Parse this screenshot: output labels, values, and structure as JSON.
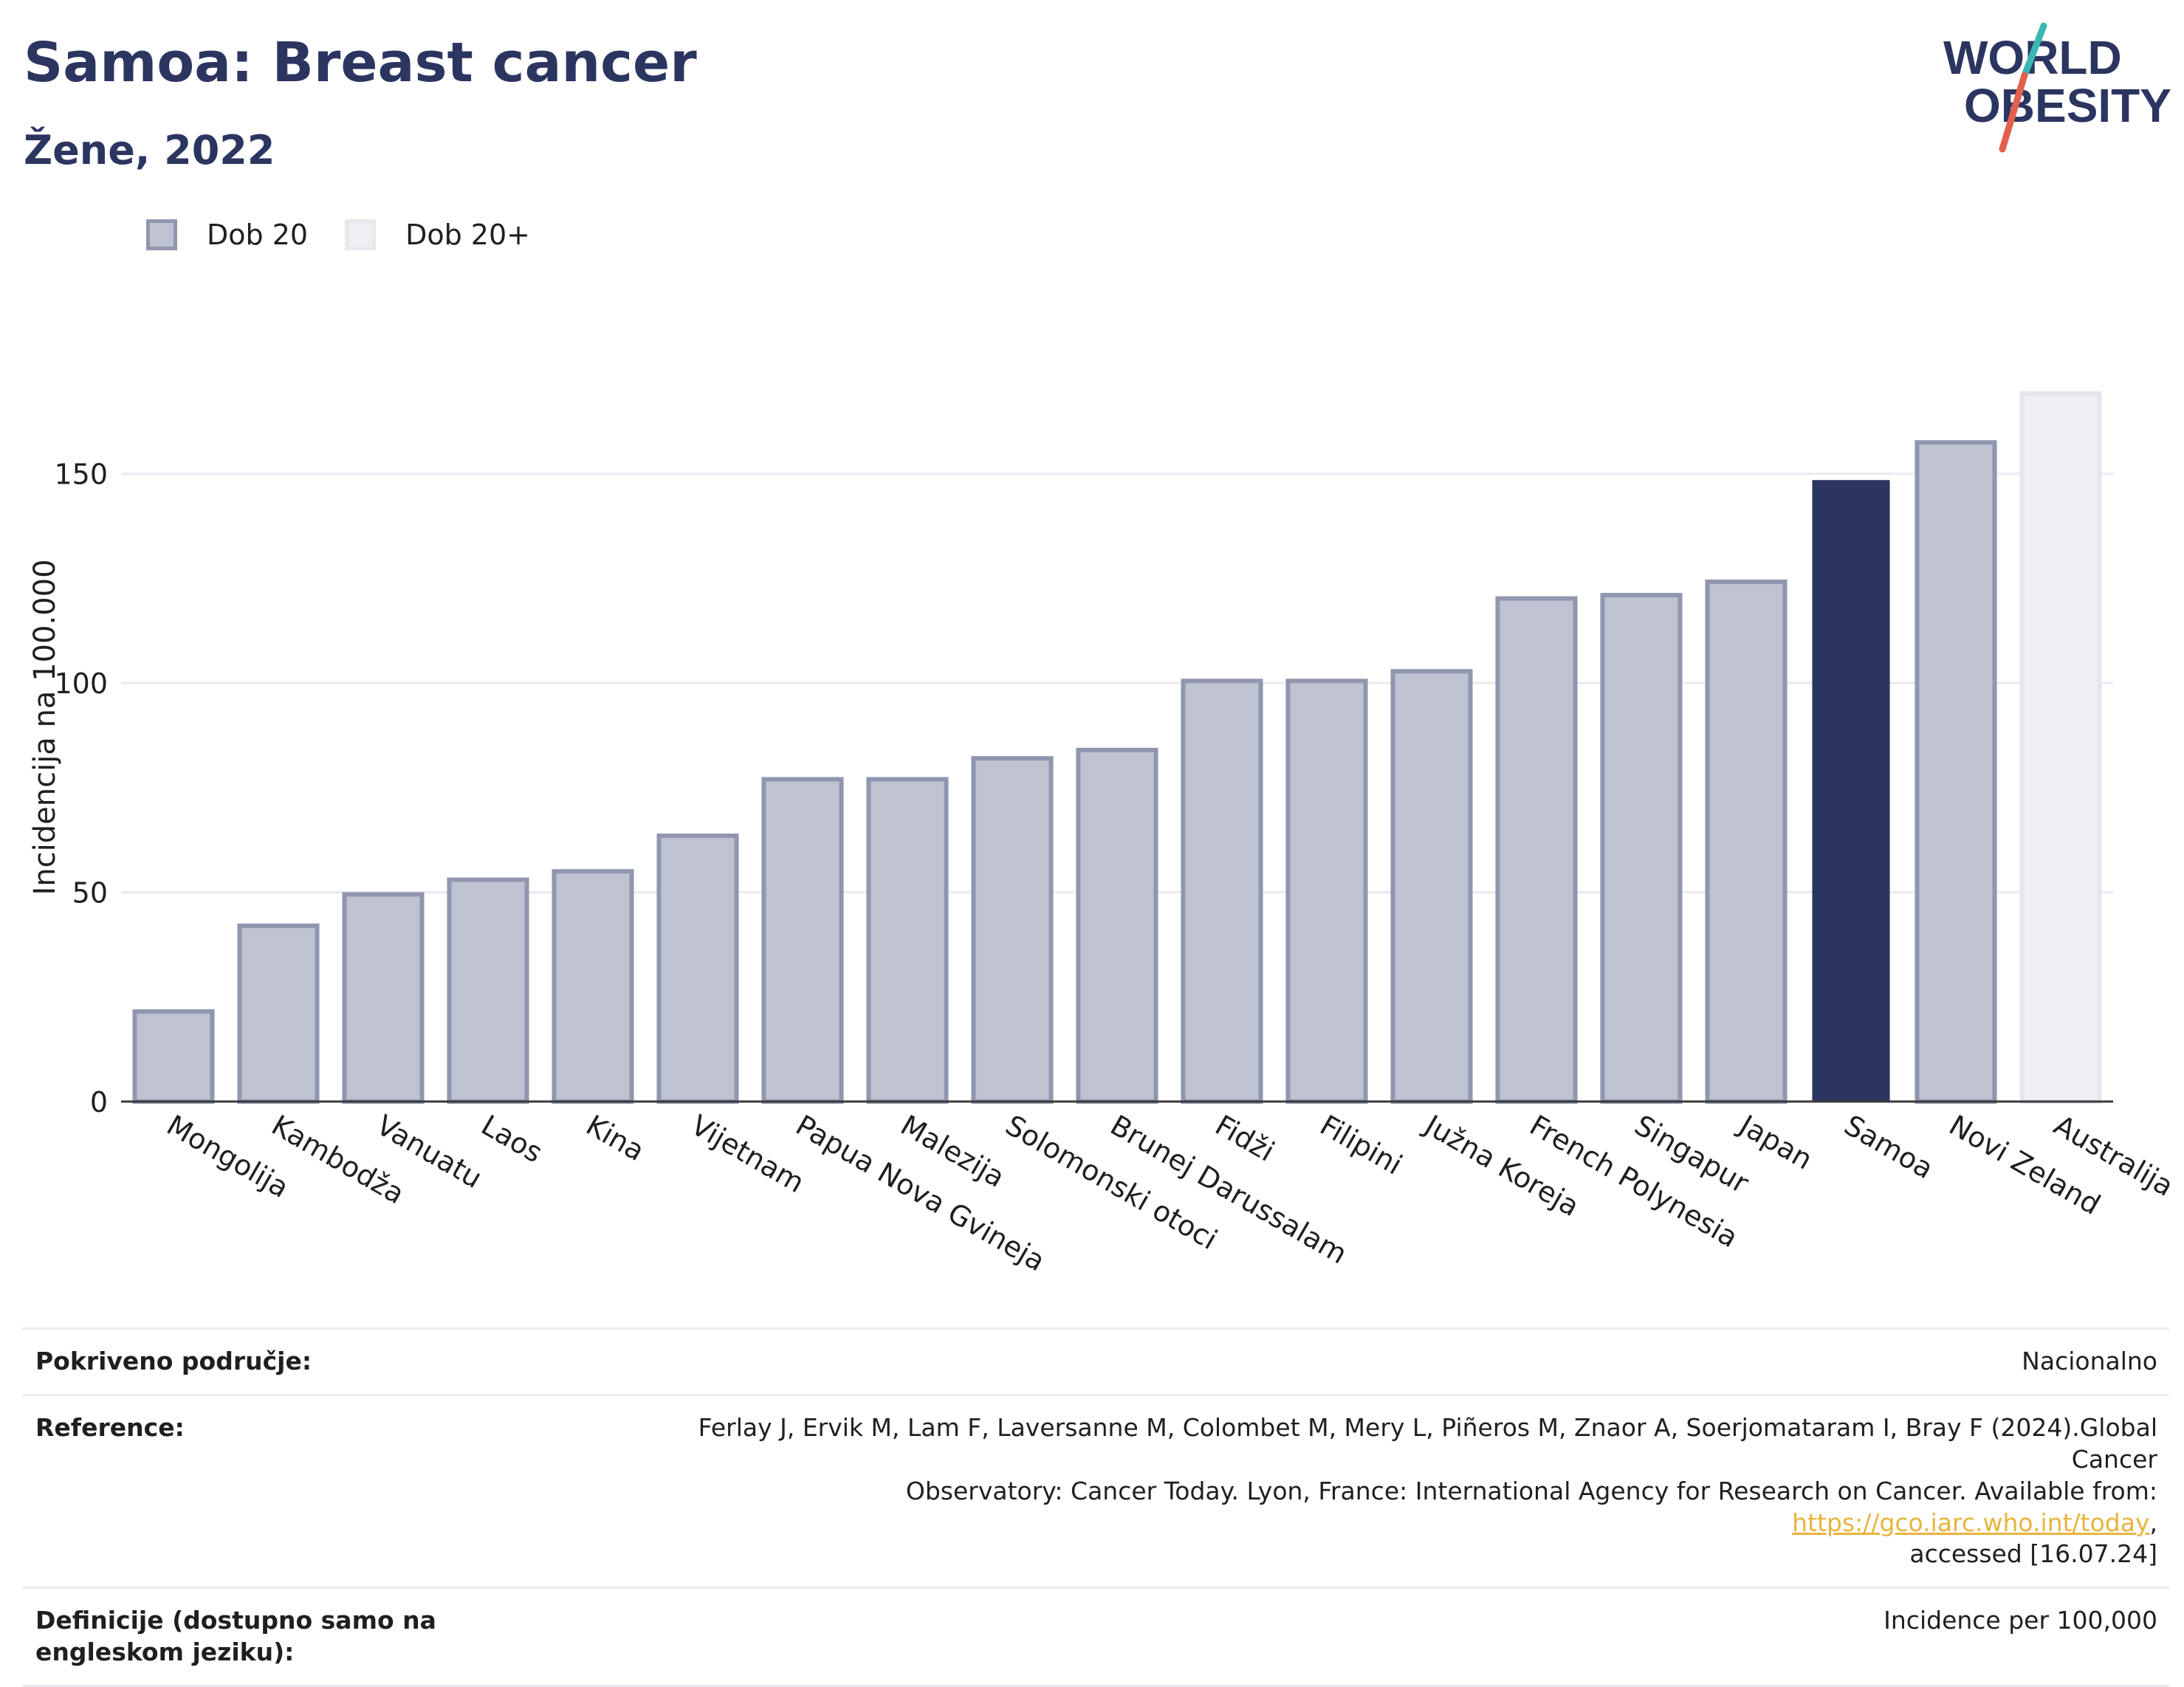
{
  "header": {
    "title": "Samoa: Breast cancer",
    "subtitle": "Žene, 2022"
  },
  "logo": {
    "line1": "WORLD",
    "line2": "OBESITY"
  },
  "legend": [
    {
      "label": "Dob 20",
      "color": "#bfc3d1",
      "border": "#8f96ae"
    },
    {
      "label": "Dob 20+",
      "color": "#eeeff3",
      "border": "#e6e8ee"
    }
  ],
  "colors": {
    "primary": "#2b3560",
    "bar_fill": "#bfc3d1",
    "bar_border": "#8f96ae",
    "highlight": "#2b3560",
    "light_fill": "#eeeff3",
    "link": "#e8b43c"
  },
  "chart_data": {
    "type": "bar",
    "title": "Samoa: Breast cancer",
    "subtitle": "Žene, 2022",
    "ylabel": "Incidencija na 100.000",
    "xlabel": "",
    "ylim": [
      0,
      175
    ],
    "yticks": [
      0,
      50,
      100,
      150
    ],
    "grid": true,
    "legend_position": "top-left",
    "categories": [
      "Mongolija",
      "Kambodža",
      "Vanuatu",
      "Laos",
      "Kina",
      "Vijetnam",
      "Papua Nova Gvineja",
      "Malezija",
      "Solomonski otoci",
      "Brunej Darussalam",
      "Fidži",
      "Filipini",
      "Južna Koreja",
      "French Polynesia",
      "Singapur",
      "Japan",
      "Samoa",
      "Novi Zeland",
      "Australija"
    ],
    "values": [
      21.5,
      42,
      49.5,
      53,
      55,
      63.5,
      77,
      77,
      82,
      84,
      100.5,
      100.5,
      102.8,
      120.2,
      121,
      124.2,
      148.5,
      157.5,
      169.2
    ],
    "bar_styles": [
      "normal",
      "normal",
      "normal",
      "normal",
      "normal",
      "normal",
      "normal",
      "normal",
      "normal",
      "normal",
      "normal",
      "normal",
      "normal",
      "normal",
      "normal",
      "normal",
      "highlight",
      "normal",
      "light"
    ]
  },
  "info": {
    "coverage_label": "Pokriveno područje:",
    "coverage_value": "Nacionalno",
    "reference_label": "Reference:",
    "reference_text_line1": "Ferlay J, Ervik M, Lam F, Laversanne M, Colombet M, Mery L, Piñeros M, Znaor A, Soerjomataram I, Bray F (2024).Global Cancer",
    "reference_text_line2": "Observatory: Cancer Today. Lyon, France: International Agency for Research on Cancer. Available from: ",
    "reference_link": "https://gco.iarc.who.int/today",
    "reference_text_end": ",",
    "reference_accessed": "accessed [16.07.24]",
    "definitions_label": "Definicije (dostupno samo na engleskom jeziku):",
    "definitions_value": "Incidence per 100,000"
  }
}
